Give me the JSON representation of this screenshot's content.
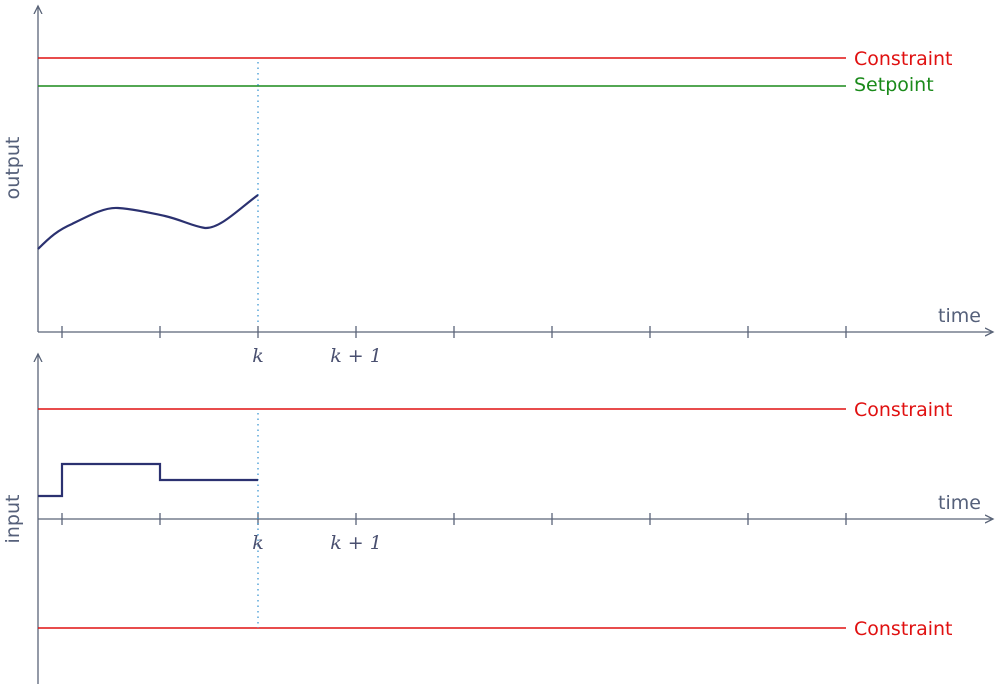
{
  "colors": {
    "axis": "#5a6478",
    "constraint": "#e01010",
    "setpoint": "#1a8a1a",
    "signal": "#2b3170",
    "marker": "#2f8fd0"
  },
  "top_panel": {
    "y_axis_label": "output",
    "x_axis_label": "time",
    "constraint_label": "Constraint",
    "setpoint_label": "Setpoint",
    "tick_labels": {
      "k": "k",
      "k_plus_1": "k + 1"
    }
  },
  "bottom_panel": {
    "y_axis_label": "input",
    "x_axis_label": "time",
    "upper_constraint_label": "Constraint",
    "lower_constraint_label": "Constraint",
    "tick_labels": {
      "k": "k",
      "k_plus_1": "k + 1"
    }
  }
}
